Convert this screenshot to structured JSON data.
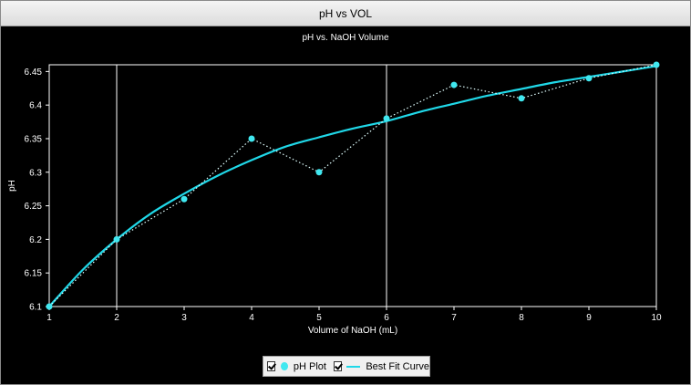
{
  "window": {
    "title": "pH vs VOL"
  },
  "chart_data": {
    "type": "line",
    "title": "pH vs. NaOH Volume",
    "xlabel": "Volume of NaOH (mL)",
    "ylabel": "pH",
    "xlim": [
      1,
      10
    ],
    "ylim": [
      6.1,
      6.46
    ],
    "xticks": [
      "1",
      "2",
      "3",
      "4",
      "5",
      "6",
      "7",
      "8",
      "9",
      "10"
    ],
    "yticks": [
      "6.1",
      "6.15",
      "6.2",
      "6.25",
      "6.3",
      "6.35",
      "6.4",
      "6.45"
    ],
    "vertical_gridlines": [
      2,
      6
    ],
    "series": [
      {
        "name": "pH Plot",
        "style": "dotted-with-markers",
        "color": "#40e8f0",
        "x": [
          1,
          2,
          3,
          4,
          5,
          6,
          7,
          8,
          9,
          10
        ],
        "y": [
          6.1,
          6.2,
          6.26,
          6.35,
          6.3,
          6.38,
          6.43,
          6.41,
          6.44,
          6.46
        ]
      },
      {
        "name": "Best Fit Curve",
        "style": "solid",
        "color": "#20d8e8",
        "x": [
          1,
          1.5,
          2,
          2.5,
          3,
          3.5,
          4,
          4.5,
          5,
          5.5,
          6,
          6.5,
          7,
          7.5,
          8,
          8.5,
          9,
          9.5,
          10
        ],
        "y": [
          6.1,
          6.155,
          6.2,
          6.238,
          6.268,
          6.295,
          6.318,
          6.338,
          6.352,
          6.365,
          6.376,
          6.39,
          6.402,
          6.414,
          6.424,
          6.434,
          6.442,
          6.45,
          6.458
        ]
      }
    ],
    "legend": {
      "placement": "bottom-center",
      "items": [
        "pH Plot",
        "Best Fit Curve"
      ]
    }
  }
}
